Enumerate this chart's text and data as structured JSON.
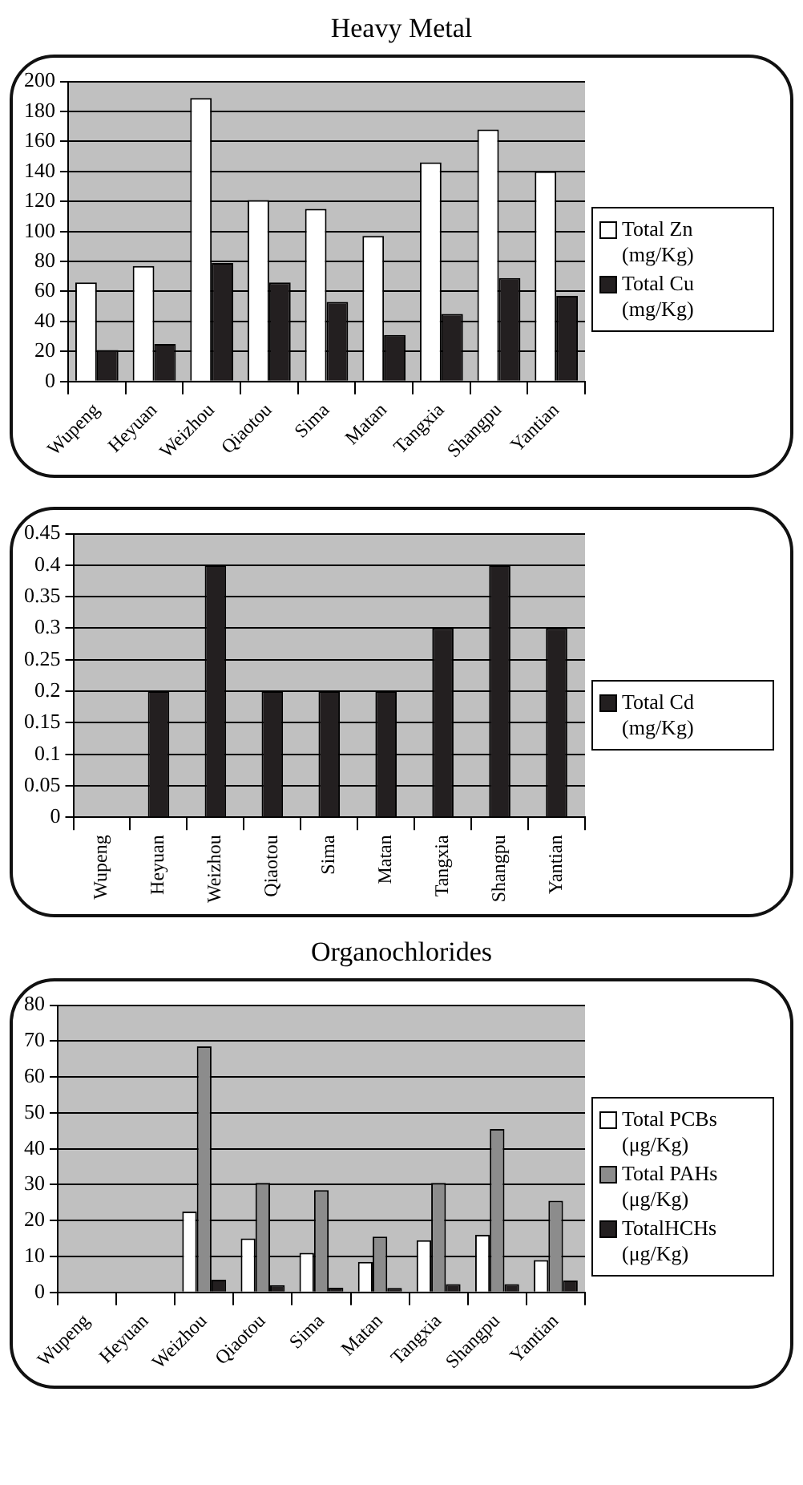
{
  "chart_data": [
    {
      "type": "bar",
      "title": "Heavy Metal",
      "categories": [
        "Wupeng",
        "Heyuan",
        "Weizhou",
        "Qiaotou",
        "Sima",
        "Matan",
        "Tangxia",
        "Shangpu",
        "Yantian"
      ],
      "series": [
        {
          "name": "Total Zn (mg/Kg)",
          "color": "#ffffff",
          "values": [
            66,
            77,
            189,
            121,
            115,
            97,
            146,
            168,
            140
          ]
        },
        {
          "name": "Total Cu (mg/Kg)",
          "color": "#231f20",
          "values": [
            21,
            25,
            79,
            66,
            53,
            31,
            45,
            69,
            57
          ]
        }
      ],
      "ylim": [
        0,
        200
      ],
      "yticks": [
        0,
        20,
        40,
        60,
        80,
        100,
        120,
        140,
        160,
        180,
        200
      ],
      "grid": "y",
      "legend": "right"
    },
    {
      "type": "bar",
      "categories": [
        "Wupeng",
        "Heyuan",
        "Weizhou",
        "Qiaotou",
        "Sima",
        "Matan",
        "Tangxia",
        "Shangpu",
        "Yantian"
      ],
      "series": [
        {
          "name": "Total Cd (mg/Kg)",
          "color": "#231f20",
          "values": [
            0,
            0.2,
            0.4,
            0.2,
            0.2,
            0.2,
            0.3,
            0.4,
            0.3
          ]
        }
      ],
      "ylim": [
        0,
        0.45
      ],
      "yticks": [
        0,
        0.05,
        0.1,
        0.15,
        0.2,
        0.25,
        0.3,
        0.35,
        0.4,
        0.45
      ],
      "grid": "y",
      "legend": "right"
    },
    {
      "type": "bar",
      "title": "Organochlorides",
      "categories": [
        "Wupeng",
        "Heyuan",
        "Weizhou",
        "Qiaotou",
        "Sima",
        "Matan",
        "Tangxia",
        "Shangpu",
        "Yantian"
      ],
      "series": [
        {
          "name": "Total PCBs (μg/Kg)",
          "color": "#ffffff",
          "values": [
            0,
            0,
            22.5,
            15,
            11,
            8.5,
            14.5,
            16,
            9
          ]
        },
        {
          "name": "Total PAHs (μg/Kg)",
          "color": "#8c8c8c",
          "values": [
            0,
            0,
            68.5,
            30.5,
            28.5,
            15.5,
            30.5,
            45.5,
            25.5
          ]
        },
        {
          "name": "TotalHCHs (μg/Kg)",
          "color": "#231f20",
          "values": [
            0,
            0,
            3.5,
            2,
            1.3,
            1.2,
            2.3,
            2.3,
            3.3
          ]
        }
      ],
      "ylim": [
        0,
        80
      ],
      "yticks": [
        0,
        10,
        20,
        30,
        40,
        50,
        60,
        70,
        80
      ],
      "grid": "y",
      "legend": "right"
    }
  ]
}
